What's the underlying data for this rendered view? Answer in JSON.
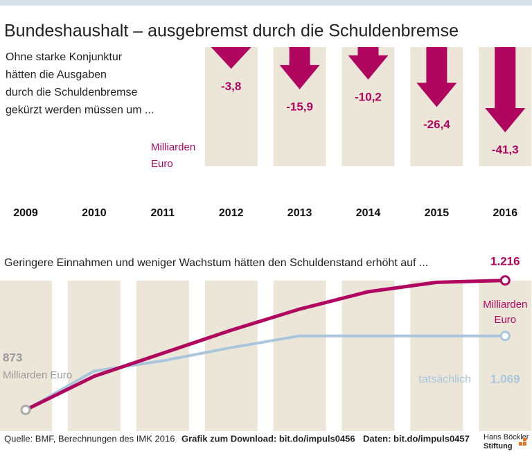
{
  "header": {
    "title": "Bundeshaushalt – ausgebremst durch die Schuldenbremse"
  },
  "chart_data": [
    {
      "type": "arrow",
      "subtitle_lines": [
        "Ohne starke Konjunktur",
        "hätten die Ausgaben",
        "durch die Schuldenbremse",
        "gekürzt werden müssen um ..."
      ],
      "unit_lines": [
        "Milliarden",
        "Euro"
      ],
      "categories": [
        "2009",
        "2010",
        "2011",
        "2012",
        "2013",
        "2014",
        "2015",
        "2016"
      ],
      "values": [
        null,
        null,
        null,
        -3.8,
        -15.9,
        -10.2,
        -26.4,
        -41.3
      ],
      "value_labels": [
        null,
        null,
        null,
        "-3,8",
        "-15,9",
        "-10,2",
        "-26,4",
        "-41,3"
      ],
      "color": "#b0065f",
      "ylim": [
        -45,
        0
      ]
    },
    {
      "type": "line",
      "subtitle": "Geringere Einnahmen und weniger Wachstum hätten den Schuldenstand erhöht auf ...",
      "annotations": [
        "Milliarden Euro",
        "Milliarden",
        "Euro"
      ],
      "series": [
        {
          "color": "#b0065f",
          "values": [
            873,
            962,
            1023,
            1084,
            1140,
            1186,
            1211,
            1216
          ],
          "value_labels": [
            "873",
            null,
            null,
            null,
            null,
            null,
            null,
            "1.216"
          ]
        },
        {
          "name": "tatsächlich",
          "color": "#a9c6dd",
          "values": [
            873,
            976,
            1003,
            1038,
            1069,
            1069,
            1069,
            1069
          ],
          "value_labels": [
            null,
            null,
            null,
            null,
            null,
            null,
            null,
            "1.069"
          ]
        }
      ],
      "ylim": [
        850,
        1230
      ]
    }
  ],
  "footer": {
    "source": "Quelle: BMF, Berechnungen des IMK 2016",
    "download": "Grafik zum Download: bit.do/impuls0456",
    "data": "Daten: bit.do/impuls0457",
    "logo": [
      "Hans Böckler",
      "Stiftung"
    ]
  }
}
